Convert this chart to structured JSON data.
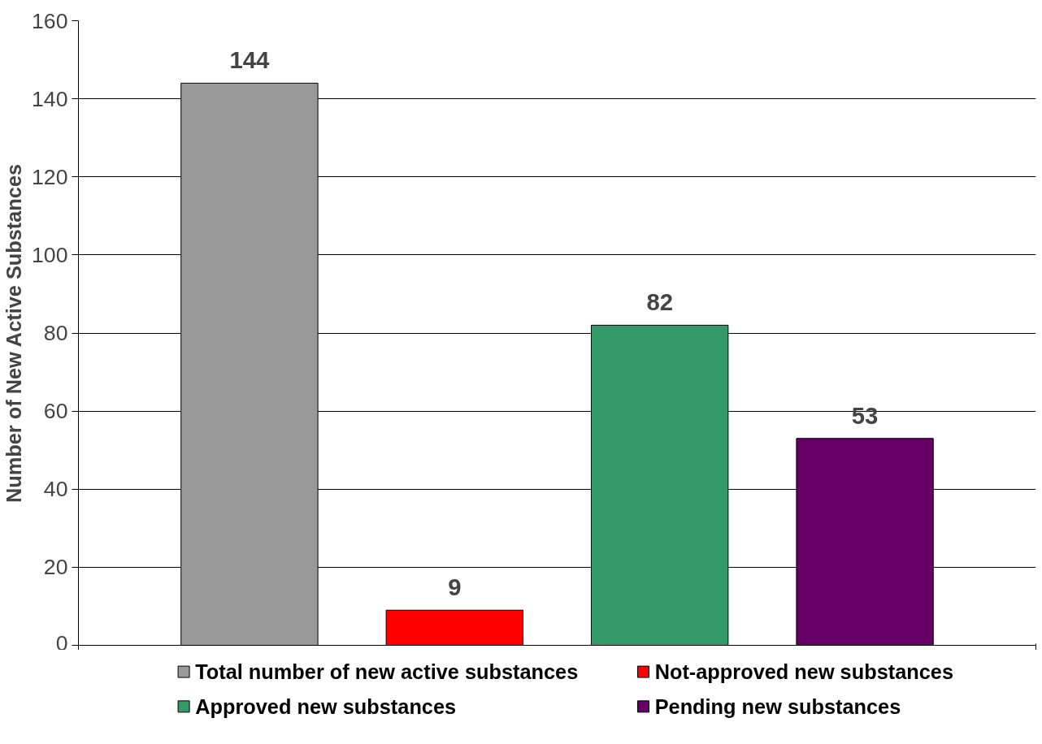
{
  "chart_data": {
    "type": "bar",
    "ylabel": "Number of New Active Substances",
    "categories": [
      null
    ],
    "series": [
      {
        "name": "Total number of new active substances",
        "color": "#999999",
        "values": [
          144
        ]
      },
      {
        "name": "Not-approved new substances",
        "color": "#ff0000",
        "values": [
          9
        ]
      },
      {
        "name": "Approved new substances",
        "color": "#339966",
        "values": [
          82
        ]
      },
      {
        "name": "Pending new substances",
        "color": "#660066",
        "values": [
          53
        ]
      }
    ],
    "ylim": [
      0,
      160
    ],
    "yticks": [
      0,
      20,
      40,
      60,
      80,
      100,
      120,
      140,
      160
    ],
    "grid": "y",
    "legend": "bottom",
    "data_labels": true,
    "tick_labels": "y"
  }
}
